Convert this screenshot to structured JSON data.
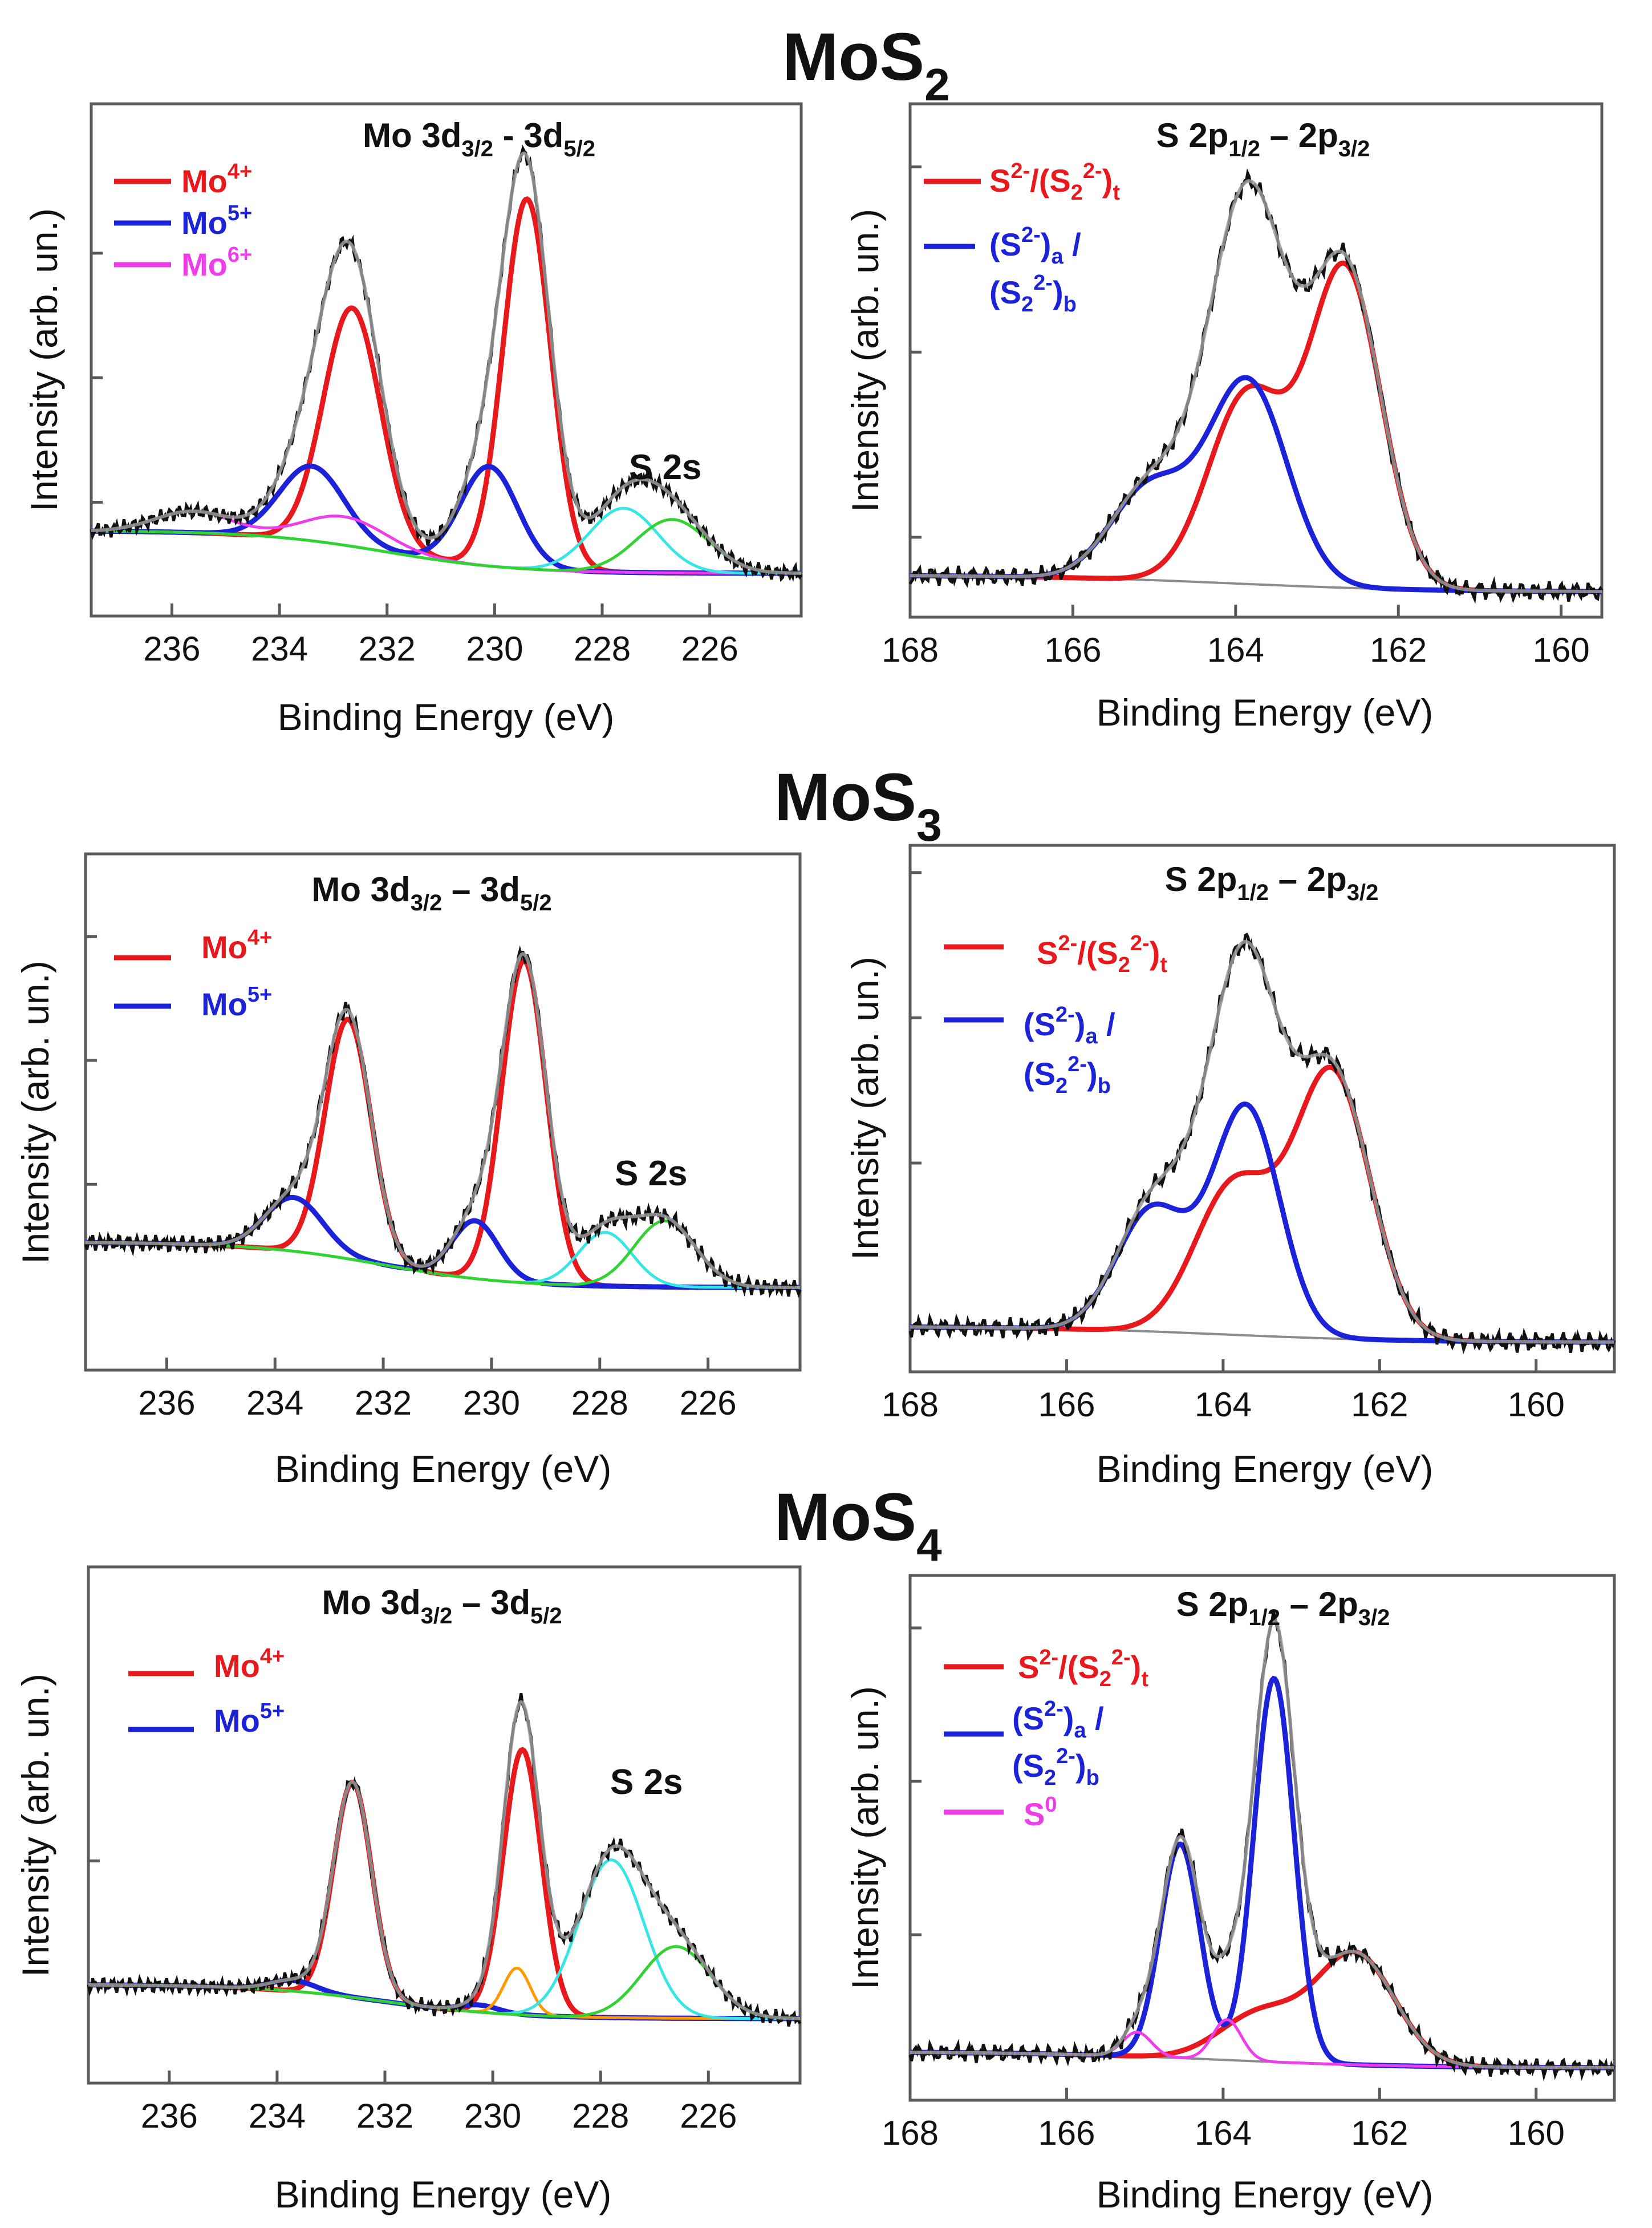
{
  "rows": [
    {
      "title_main": "MoS",
      "title_sub": "2"
    },
    {
      "title_main": "MoS",
      "title_sub": "3"
    },
    {
      "title_main": "MoS",
      "title_sub": "4"
    }
  ],
  "axis": {
    "xlabel": "Binding Energy (eV)",
    "ylabel": "Intensity (arb. un.)"
  },
  "panel_titles": {
    "mo_a": {
      "p1": "Mo 3d",
      "s1": "3/2",
      "dash": " - 3d",
      "s2": "5/2"
    },
    "mo_b": {
      "p1": "Mo 3d",
      "s1": "3/2",
      "dash": " – 3d",
      "s2": "5/2"
    },
    "s": {
      "p1": "S 2p",
      "s1": "1/2",
      "dash": " – 2p",
      "s2": "3/2"
    }
  },
  "annotation": {
    "s2s": "S 2s"
  },
  "legend": {
    "mo4": {
      "base": "Mo",
      "sup": "4+"
    },
    "mo5": {
      "base": "Mo",
      "sup": "5+"
    },
    "mo6": {
      "base": "Mo",
      "sup": "6+"
    },
    "st": {
      "a": "S",
      "asup": "2-",
      "b": "/(S",
      "bsub": "2",
      "bsup": "2-",
      "c": ")",
      "csub": "t"
    },
    "sab1": {
      "a": "(S",
      "asup": "2-",
      "b": ")",
      "bsub": "a",
      "c": " /"
    },
    "sab2": {
      "a": "(S",
      "asub": "2",
      "asup": "2-",
      "b": ")",
      "bsub": "b"
    },
    "s0": {
      "base": "S",
      "sup": "0"
    }
  },
  "colors": {
    "mo4": "#e8191c",
    "mo5": "#1c22d8",
    "mo6": "#ee3ee8",
    "fit": "#9a9a9a",
    "bg": "#8c8c8c",
    "exp": "#111111",
    "cyan": "#38e5e5",
    "green": "#33d233",
    "orange": "#ff9900"
  },
  "chart_data": [
    {
      "type": "line",
      "id": "MoS2-Mo3d",
      "compound": "MoS2",
      "title": "Mo 3d3/2 - 3d5/2",
      "xlabel": "Binding Energy (eV)",
      "ylabel": "Intensity (arb. un.)",
      "xlim": [
        237.5,
        224.3
      ],
      "ylim": [
        -0.12,
        1.32
      ],
      "xticks": [
        236,
        234,
        232,
        230,
        228,
        226
      ],
      "yticks": [
        0.2,
        0.55,
        0.9
      ],
      "background": {
        "low": 0.0,
        "high": 0.12,
        "center": 232.0,
        "width": 1.2
      },
      "components": [
        {
          "name": "Mo4+",
          "color": "mo4",
          "peaks": [
            [
              232.65,
              0.67,
              0.75
            ],
            [
              229.4,
              1.04,
              0.62
            ]
          ]
        },
        {
          "name": "Mo5+",
          "color": "mo5",
          "peaks": [
            [
              233.4,
              0.21,
              0.85
            ],
            [
              230.1,
              0.28,
              0.75
            ]
          ]
        },
        {
          "name": "Mo6+",
          "color": "mo6",
          "peaks": [
            [
              235.6,
              0.06,
              1.0
            ],
            [
              232.8,
              0.08,
              1.1
            ]
          ]
        },
        {
          "name": "S 2s",
          "color": "cyan",
          "peaks": [
            [
              227.6,
              0.18,
              0.9
            ]
          ]
        },
        {
          "name": "",
          "color": "green",
          "peaks": [
            [
              226.7,
              0.15,
              0.95
            ]
          ]
        }
      ]
    },
    {
      "type": "line",
      "id": "MoS2-S2p",
      "compound": "MoS2",
      "title": "S 2p1/2 – 2p3/2",
      "xlabel": "Binding Energy (eV)",
      "ylabel": "Intensity (arb. un.)",
      "xlim": [
        168,
        159.5
      ],
      "ylim": [
        -0.1,
        1.12
      ],
      "xticks": [
        168,
        166,
        164,
        162,
        160
      ],
      "yticks": [
        0.09,
        0.53,
        0.97
      ],
      "background": {
        "low": -0.04,
        "high": 0.0,
        "center": 164.0,
        "width": 1.2
      },
      "components": [
        {
          "name": "S2-/(S2 2-)t",
          "color": "mo4",
          "peaks": [
            [
              162.65,
              0.75,
              0.62
            ],
            [
              163.85,
              0.45,
              0.68
            ]
          ]
        },
        {
          "name": "(S2-)a / (S2 2-)b",
          "color": "mo5",
          "peaks": [
            [
              163.85,
              0.48,
              0.68
            ],
            [
              165.05,
              0.22,
              0.68
            ]
          ]
        }
      ]
    },
    {
      "type": "line",
      "id": "MoS3-Mo3d",
      "compound": "MoS3",
      "title": "Mo 3d3/2 – 3d5/2",
      "xlabel": "Binding Energy (eV)",
      "ylabel": "Intensity (arb. un.)",
      "xlim": [
        237.5,
        224.3
      ],
      "ylim": [
        -0.2,
        1.05
      ],
      "xticks": [
        236,
        234,
        232,
        230,
        228,
        226
      ],
      "yticks": [
        0.25,
        0.55,
        0.85
      ],
      "background": {
        "low": 0.0,
        "high": 0.11,
        "center": 232.0,
        "width": 1.2
      },
      "components": [
        {
          "name": "Mo4+",
          "color": "mo4",
          "peaks": [
            [
              232.65,
              0.58,
              0.6
            ],
            [
              229.4,
              0.78,
              0.58
            ]
          ]
        },
        {
          "name": "Mo5+",
          "color": "mo5",
          "peaks": [
            [
              233.65,
              0.13,
              0.75
            ],
            [
              230.3,
              0.14,
              0.6
            ]
          ]
        },
        {
          "name": "",
          "color": "cyan",
          "peaks": [
            [
              227.9,
              0.13,
              0.7
            ]
          ]
        },
        {
          "name": "",
          "color": "green",
          "peaks": [
            [
              226.8,
              0.16,
              0.8
            ]
          ]
        }
      ]
    },
    {
      "type": "line",
      "id": "MoS3-S2p",
      "compound": "MoS3",
      "title": "S 2p1/2 – 2p3/2",
      "xlabel": "Binding Energy (eV)",
      "ylabel": "Intensity (arb. un.)",
      "xlim": [
        168,
        159
      ],
      "ylim": [
        -0.1,
        1.06
      ],
      "xticks": [
        168,
        166,
        164,
        162,
        160
      ],
      "yticks": [
        0.36,
        0.68,
        1.0
      ],
      "background": {
        "low": -0.035,
        "high": 0.0,
        "center": 164.0,
        "width": 1.2
      },
      "components": [
        {
          "name": "S2-/(S2 2-)t",
          "color": "mo4",
          "peaks": [
            [
              162.6,
              0.58,
              0.68
            ],
            [
              163.85,
              0.33,
              0.72
            ]
          ]
        },
        {
          "name": "(S2-)a / (S2 2-)b",
          "color": "mo5",
          "peaks": [
            [
              163.7,
              0.5,
              0.6
            ],
            [
              164.9,
              0.27,
              0.65
            ]
          ]
        }
      ]
    },
    {
      "type": "line",
      "id": "MoS4-Mo3d",
      "compound": "MoS4",
      "title": "Mo 3d3/2 – 3d5/2",
      "xlabel": "Binding Energy (eV)",
      "ylabel": "Intensity (arb. un.)",
      "xlim": [
        237.5,
        224.3
      ],
      "ylim": [
        -0.18,
        1.26
      ],
      "xticks": [
        236,
        234,
        232,
        230,
        228,
        226
      ],
      "yticks": [
        0.44
      ],
      "background": {
        "low": 0.0,
        "high": 0.095,
        "center": 232.0,
        "width": 1.2
      },
      "components": [
        {
          "name": "Mo4+",
          "color": "mo4",
          "peaks": [
            [
              232.6,
              0.6,
              0.5
            ],
            [
              229.45,
              0.74,
              0.5
            ]
          ]
        },
        {
          "name": "Mo5+",
          "color": "mo5",
          "peaks": [
            [
              233.7,
              0.03,
              0.6
            ],
            [
              230.25,
              0.02,
              0.5
            ]
          ]
        },
        {
          "name": "",
          "color": "orange",
          "peaks": [
            [
              229.55,
              0.13,
              0.35
            ]
          ]
        },
        {
          "name": "",
          "color": "cyan",
          "peaks": [
            [
              227.8,
              0.44,
              0.85
            ]
          ]
        },
        {
          "name": "",
          "color": "green",
          "peaks": [
            [
              226.6,
              0.2,
              0.9
            ]
          ]
        }
      ]
    },
    {
      "type": "line",
      "id": "MoS4-S2p",
      "compound": "MoS4",
      "title": "S 2p1/2 – 2p3/2",
      "xlabel": "Binding Energy (eV)",
      "ylabel": "Intensity (arb. un.)",
      "xlim": [
        168,
        159
      ],
      "ylim": [
        -0.12,
        1.18
      ],
      "xticks": [
        168,
        166,
        164,
        162,
        160
      ],
      "yticks": [
        0.29,
        0.67,
        1.05
      ],
      "background": {
        "low": -0.04,
        "high": 0.0,
        "center": 164.0,
        "width": 1.2
      },
      "components": [
        {
          "name": "S2-/(S2 2-)t",
          "color": "mo4",
          "peaks": [
            [
              162.3,
              0.27,
              0.7
            ],
            [
              163.5,
              0.12,
              0.75
            ]
          ]
        },
        {
          "name": "(S2-)a / (S2 2-)b",
          "color": "mo5",
          "peaks": [
            [
              163.35,
              0.95,
              0.36
            ],
            [
              164.55,
              0.53,
              0.36
            ]
          ]
        },
        {
          "name": "S0",
          "color": "mo6",
          "peaks": [
            [
              163.95,
              0.1,
              0.26
            ],
            [
              165.1,
              0.06,
              0.26
            ]
          ]
        }
      ]
    }
  ]
}
